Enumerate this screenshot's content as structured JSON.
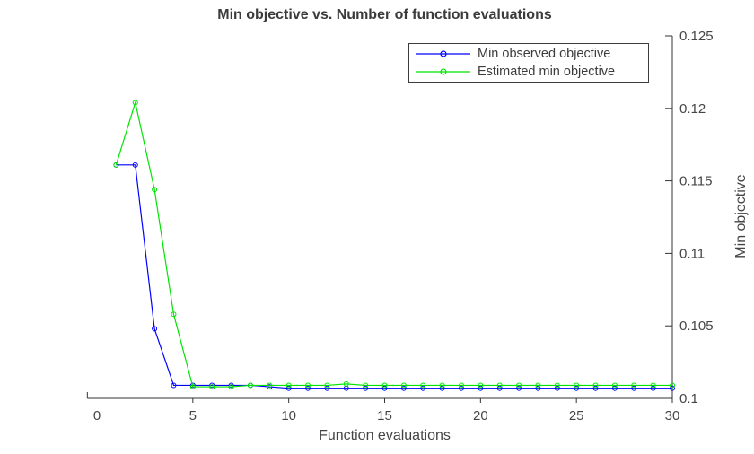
{
  "chart_data": {
    "type": "line",
    "title": "Min objective vs. Number of function evaluations",
    "xlabel": "Function evaluations",
    "ylabel": "Min objective",
    "xlim": [
      -0.5,
      30
    ],
    "ylim": [
      0.1,
      0.125
    ],
    "x_ticks": [
      0,
      5,
      10,
      15,
      20,
      25,
      30
    ],
    "y_ticks": [
      0.1,
      0.105,
      0.11,
      0.115,
      0.12,
      0.125
    ],
    "y_tick_labels": [
      "0.1",
      "0.105",
      "0.11",
      "0.115",
      "0.12",
      "0.125"
    ],
    "y_axis_side": "right",
    "grid": false,
    "legend_position": "top-right-inside",
    "x": [
      1,
      2,
      3,
      4,
      5,
      6,
      7,
      8,
      9,
      10,
      11,
      12,
      13,
      14,
      15,
      16,
      17,
      18,
      19,
      20,
      21,
      22,
      23,
      24,
      25,
      26,
      27,
      28,
      29,
      30
    ],
    "series": [
      {
        "name": "Min observed objective",
        "color": "#0000ff",
        "marker": "circle",
        "values": [
          0.1161,
          0.1161,
          0.1048,
          0.1009,
          0.1009,
          0.1009,
          0.1009,
          0.1009,
          0.1008,
          0.1007,
          0.1007,
          0.1007,
          0.1007,
          0.1007,
          0.1007,
          0.1007,
          0.1007,
          0.1007,
          0.1007,
          0.1007,
          0.1007,
          0.1007,
          0.1007,
          0.1007,
          0.1007,
          0.1007,
          0.1007,
          0.1007,
          0.1007,
          0.1007
        ]
      },
      {
        "name": "Estimated min objective",
        "color": "#00e400",
        "marker": "circle",
        "values": [
          0.1161,
          0.1204,
          0.1144,
          0.1058,
          0.1008,
          0.1008,
          0.1008,
          0.1009,
          0.1009,
          0.1009,
          0.1009,
          0.1009,
          0.101,
          0.1009,
          0.1009,
          0.1009,
          0.1009,
          0.1009,
          0.1009,
          0.1009,
          0.1009,
          0.1009,
          0.1009,
          0.1009,
          0.1009,
          0.1009,
          0.1009,
          0.1009,
          0.1009,
          0.1009
        ]
      }
    ],
    "colors": {
      "axis": "#333333",
      "tick_text": "#454545",
      "title_text": "#3b3b3b",
      "background": "#ffffff"
    }
  }
}
